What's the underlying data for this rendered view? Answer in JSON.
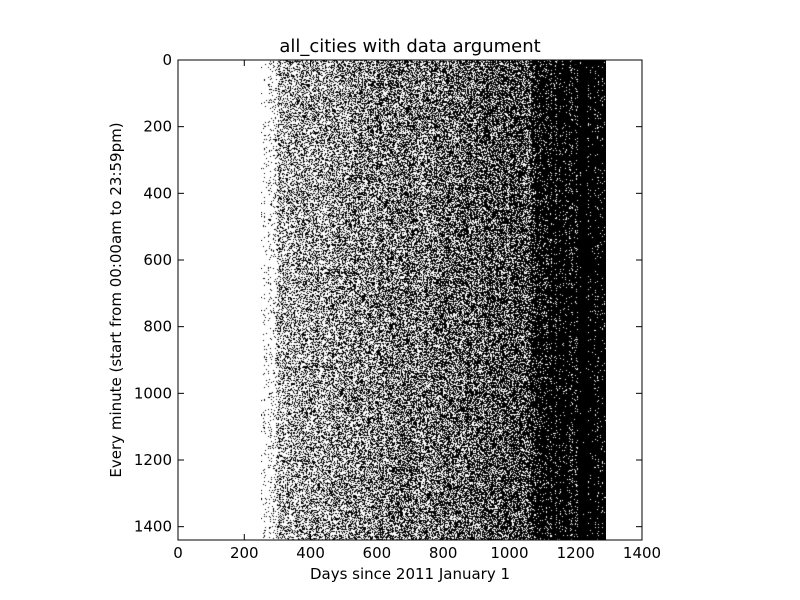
{
  "chart_data": {
    "type": "heatmap",
    "title": "all_cities with data argument",
    "xlabel": "Days since 2011 January 1",
    "ylabel": "Every minute (start from 00:00am to 23:59pm)",
    "xlim": [
      0,
      1400
    ],
    "ylim": [
      1440,
      0
    ],
    "y_inverted": true,
    "x_ticks": [
      0,
      200,
      400,
      600,
      800,
      1000,
      1200,
      1400
    ],
    "x_tick_labels": [
      "0",
      "200",
      "400",
      "600",
      "800",
      "1000",
      "1200",
      "1400"
    ],
    "y_ticks": [
      0,
      200,
      400,
      600,
      800,
      1000,
      1200,
      1400
    ],
    "y_tick_labels": [
      "0",
      "200",
      "400",
      "600",
      "800",
      "1000",
      "1200",
      "1400"
    ],
    "grid": false,
    "colormap": "binary",
    "colors": {
      "active": "#000000",
      "inactive": "#ffffff"
    },
    "data_extent": {
      "x_min": 250,
      "x_max": 1290,
      "y_min": 0,
      "y_max": 1440
    },
    "density_profile": {
      "day": [
        250,
        285,
        300,
        400,
        500,
        600,
        680,
        750,
        800,
        900,
        1000,
        1060,
        1070,
        1150,
        1200,
        1250,
        1290
      ],
      "black_fraction": [
        0.01,
        0.05,
        0.3,
        0.38,
        0.42,
        0.47,
        0.55,
        0.52,
        0.58,
        0.62,
        0.68,
        0.72,
        0.88,
        0.92,
        0.94,
        0.97,
        0.97
      ]
    }
  }
}
